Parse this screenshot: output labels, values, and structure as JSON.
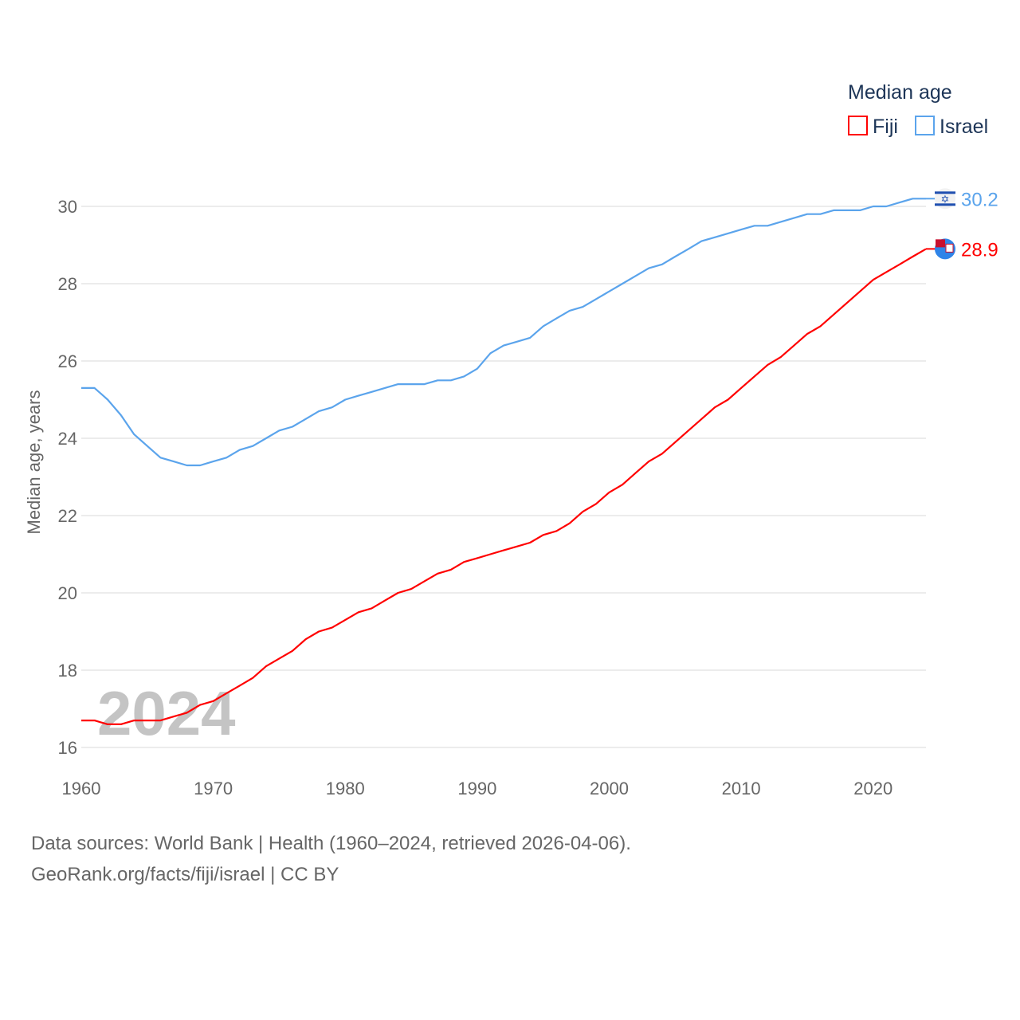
{
  "chart_data": {
    "type": "line",
    "legend_title": "Median age",
    "legend_position": "top-right",
    "ylabel": "Median age, years",
    "xlabel": "",
    "ylim": [
      16,
      30.6
    ],
    "xlim": [
      1960,
      2024
    ],
    "yticks": [
      16,
      18,
      20,
      22,
      24,
      26,
      28,
      30
    ],
    "xticks": [
      1960,
      1970,
      1980,
      1990,
      2000,
      2010,
      2020
    ],
    "year_label": "2024",
    "x": [
      1960,
      1961,
      1962,
      1963,
      1964,
      1965,
      1966,
      1967,
      1968,
      1969,
      1970,
      1971,
      1972,
      1973,
      1974,
      1975,
      1976,
      1977,
      1978,
      1979,
      1980,
      1981,
      1982,
      1983,
      1984,
      1985,
      1986,
      1987,
      1988,
      1989,
      1990,
      1991,
      1992,
      1993,
      1994,
      1995,
      1996,
      1997,
      1998,
      1999,
      2000,
      2001,
      2002,
      2003,
      2004,
      2005,
      2006,
      2007,
      2008,
      2009,
      2010,
      2011,
      2012,
      2013,
      2014,
      2015,
      2016,
      2017,
      2018,
      2019,
      2020,
      2021,
      2022,
      2023,
      2024
    ],
    "series": [
      {
        "name": "Fiji",
        "color": "#ff0000",
        "end_label": "28.9",
        "values": [
          16.7,
          16.7,
          16.6,
          16.6,
          16.7,
          16.7,
          16.7,
          16.8,
          16.9,
          17.1,
          17.2,
          17.4,
          17.6,
          17.8,
          18.1,
          18.3,
          18.5,
          18.8,
          19.0,
          19.1,
          19.3,
          19.5,
          19.6,
          19.8,
          20.0,
          20.1,
          20.3,
          20.5,
          20.6,
          20.8,
          20.9,
          21.0,
          21.1,
          21.2,
          21.3,
          21.5,
          21.6,
          21.8,
          22.1,
          22.3,
          22.6,
          22.8,
          23.1,
          23.4,
          23.6,
          23.9,
          24.2,
          24.5,
          24.8,
          25.0,
          25.3,
          25.6,
          25.9,
          26.1,
          26.4,
          26.7,
          26.9,
          27.2,
          27.5,
          27.8,
          28.1,
          28.3,
          28.5,
          28.7,
          28.9
        ]
      },
      {
        "name": "Israel",
        "color": "#5ba4ec",
        "end_label": "30.2",
        "values": [
          25.3,
          25.3,
          25.0,
          24.6,
          24.1,
          23.8,
          23.5,
          23.4,
          23.3,
          23.3,
          23.4,
          23.5,
          23.7,
          23.8,
          24.0,
          24.2,
          24.3,
          24.5,
          24.7,
          24.8,
          25.0,
          25.1,
          25.2,
          25.3,
          25.4,
          25.4,
          25.4,
          25.5,
          25.5,
          25.6,
          25.8,
          26.2,
          26.4,
          26.5,
          26.6,
          26.9,
          27.1,
          27.3,
          27.4,
          27.6,
          27.8,
          28.0,
          28.2,
          28.4,
          28.5,
          28.7,
          28.9,
          29.1,
          29.2,
          29.3,
          29.4,
          29.5,
          29.5,
          29.6,
          29.7,
          29.8,
          29.8,
          29.9,
          29.9,
          29.9,
          30.0,
          30.0,
          30.1,
          30.2,
          30.2
        ]
      }
    ]
  },
  "footer": {
    "sources": "Data sources: World Bank | Health (1960–2024, retrieved 2026-04-06).",
    "credit": "GeoRank.org/facts/fiji/israel | CC BY"
  }
}
